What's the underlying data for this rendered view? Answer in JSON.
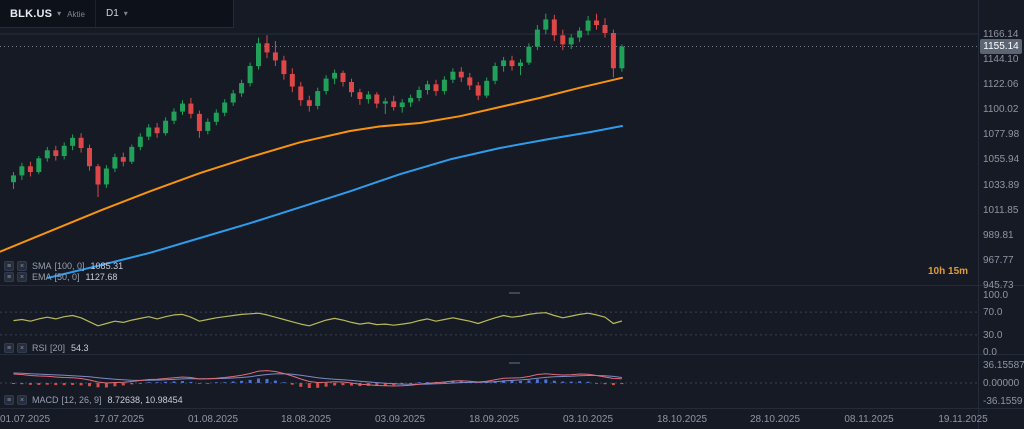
{
  "toolbar": {
    "symbol": "BLK.US",
    "instrument_type": "Aktie",
    "timeframe": "D1"
  },
  "icons": {
    "chevron_down": "▾",
    "menu": "≡",
    "close": "×"
  },
  "countdown": "10h 15m",
  "price_axis": {
    "current_price": "1155.14",
    "ticks": [
      "1166.14",
      "1144.10",
      "1122.06",
      "1100.02",
      "1077.98",
      "1055.94",
      "1033.89",
      "1011.85",
      "989.81",
      "967.77",
      "945.73"
    ]
  },
  "time_axis": {
    "ticks": [
      "01.07.2025",
      "17.07.2025",
      "01.08.2025",
      "18.08.2025",
      "03.09.2025",
      "18.09.2025",
      "03.10.2025",
      "18.10.2025",
      "28.10.2025",
      "08.11.2025",
      "19.11.2025"
    ]
  },
  "indicators": {
    "sma": {
      "name": "SMA",
      "params": "[100, 0]",
      "value": "1085.31"
    },
    "ema": {
      "name": "EMA",
      "params": "[50, 0]",
      "value": "1127.68"
    },
    "rsi": {
      "name": "RSI",
      "params": "[20]",
      "value": "54.3"
    },
    "macd": {
      "name": "MACD",
      "params": "[12, 26, 9]",
      "value": "8.72638, 10.98454"
    }
  },
  "colors": {
    "up": "#21a05a",
    "down": "#de4747",
    "sma": "#2f9ceb",
    "ema": "#f7930e",
    "rsi": "#b9b95a",
    "macd_line": "#e06c75",
    "signal_line": "#7d8ac9",
    "hist_pos": "#4a72d8",
    "hist_neg": "#d64c4c",
    "countdown": "#e09b3d",
    "current_price_line": "#8a919e",
    "high_line": "#272e3d",
    "level_line": "#3a4152"
  },
  "chart_data": {
    "type": "candlestick",
    "symbol": "BLK.US",
    "timeframe": "D1",
    "price_line": 1155.14,
    "high_line": 1166.14,
    "candles": [
      [
        1036,
        1045,
        1030,
        1042
      ],
      [
        1042,
        1053,
        1038,
        1050
      ],
      [
        1050,
        1054,
        1041,
        1045
      ],
      [
        1045,
        1059,
        1043,
        1057
      ],
      [
        1057,
        1067,
        1054,
        1064
      ],
      [
        1064,
        1068,
        1055,
        1059
      ],
      [
        1059,
        1071,
        1056,
        1068
      ],
      [
        1068,
        1078,
        1064,
        1075
      ],
      [
        1075,
        1079,
        1062,
        1066
      ],
      [
        1066,
        1069,
        1046,
        1050
      ],
      [
        1050,
        1052,
        1023,
        1034
      ],
      [
        1034,
        1051,
        1031,
        1048
      ],
      [
        1048,
        1061,
        1045,
        1058
      ],
      [
        1058,
        1062,
        1050,
        1054
      ],
      [
        1054,
        1069,
        1052,
        1067
      ],
      [
        1067,
        1079,
        1064,
        1076
      ],
      [
        1076,
        1087,
        1073,
        1084
      ],
      [
        1084,
        1088,
        1075,
        1079
      ],
      [
        1079,
        1093,
        1077,
        1090
      ],
      [
        1090,
        1101,
        1087,
        1098
      ],
      [
        1098,
        1108,
        1095,
        1105
      ],
      [
        1105,
        1110,
        1092,
        1096
      ],
      [
        1096,
        1099,
        1075,
        1081
      ],
      [
        1081,
        1092,
        1078,
        1089
      ],
      [
        1089,
        1100,
        1086,
        1097
      ],
      [
        1097,
        1109,
        1094,
        1106
      ],
      [
        1106,
        1117,
        1103,
        1114
      ],
      [
        1114,
        1126,
        1111,
        1123
      ],
      [
        1123,
        1141,
        1120,
        1138
      ],
      [
        1138,
        1163,
        1135,
        1158
      ],
      [
        1158,
        1165,
        1145,
        1150
      ],
      [
        1150,
        1160,
        1138,
        1143
      ],
      [
        1143,
        1147,
        1126,
        1131
      ],
      [
        1131,
        1136,
        1115,
        1120
      ],
      [
        1120,
        1124,
        1103,
        1108
      ],
      [
        1108,
        1112,
        1098,
        1103
      ],
      [
        1103,
        1119,
        1100,
        1116
      ],
      [
        1116,
        1130,
        1113,
        1127
      ],
      [
        1127,
        1135,
        1122,
        1132
      ],
      [
        1132,
        1134,
        1120,
        1124
      ],
      [
        1124,
        1127,
        1111,
        1115
      ],
      [
        1115,
        1118,
        1104,
        1109
      ],
      [
        1109,
        1116,
        1105,
        1113
      ],
      [
        1113,
        1115,
        1101,
        1105
      ],
      [
        1105,
        1110,
        1096,
        1107
      ],
      [
        1107,
        1112,
        1099,
        1102
      ],
      [
        1102,
        1109,
        1097,
        1106
      ],
      [
        1106,
        1113,
        1102,
        1110
      ],
      [
        1110,
        1120,
        1107,
        1117
      ],
      [
        1117,
        1125,
        1113,
        1122
      ],
      [
        1122,
        1126,
        1112,
        1116
      ],
      [
        1116,
        1129,
        1113,
        1126
      ],
      [
        1126,
        1136,
        1123,
        1133
      ],
      [
        1133,
        1137,
        1124,
        1128
      ],
      [
        1128,
        1132,
        1117,
        1121
      ],
      [
        1121,
        1124,
        1108,
        1112
      ],
      [
        1112,
        1128,
        1110,
        1125
      ],
      [
        1125,
        1141,
        1122,
        1138
      ],
      [
        1138,
        1146,
        1133,
        1143
      ],
      [
        1143,
        1147,
        1134,
        1138
      ],
      [
        1138,
        1144,
        1130,
        1141
      ],
      [
        1141,
        1158,
        1139,
        1155
      ],
      [
        1155,
        1174,
        1152,
        1170
      ],
      [
        1170,
        1184,
        1166,
        1179
      ],
      [
        1179,
        1183,
        1160,
        1165
      ],
      [
        1165,
        1170,
        1152,
        1157
      ],
      [
        1157,
        1166,
        1153,
        1163
      ],
      [
        1163,
        1172,
        1159,
        1169
      ],
      [
        1169,
        1182,
        1165,
        1178
      ],
      [
        1178,
        1184,
        1170,
        1174
      ],
      [
        1174,
        1180,
        1163,
        1167
      ],
      [
        1167,
        1170,
        1128,
        1136
      ],
      [
        1136,
        1157,
        1133,
        1155.14
      ]
    ],
    "overlays": [
      {
        "name": "SMA(100)",
        "color_key": "sma",
        "points": [
          [
            48,
            952
          ],
          [
            100,
            963
          ],
          [
            150,
            974
          ],
          [
            200,
            987
          ],
          [
            250,
            1000
          ],
          [
            300,
            1014
          ],
          [
            350,
            1028
          ],
          [
            400,
            1043
          ],
          [
            450,
            1056
          ],
          [
            500,
            1066
          ],
          [
            550,
            1074
          ],
          [
            590,
            1080
          ],
          [
            622,
            1085.31
          ]
        ]
      },
      {
        "name": "EMA(50)",
        "color_key": "ema",
        "points": [
          [
            0,
            975
          ],
          [
            50,
            993
          ],
          [
            100,
            1011
          ],
          [
            150,
            1028
          ],
          [
            200,
            1044
          ],
          [
            250,
            1058
          ],
          [
            300,
            1071
          ],
          [
            350,
            1081
          ],
          [
            380,
            1085
          ],
          [
            420,
            1088
          ],
          [
            460,
            1094
          ],
          [
            500,
            1102
          ],
          [
            540,
            1110
          ],
          [
            580,
            1119
          ],
          [
            622,
            1127.68
          ]
        ]
      }
    ],
    "rsi_panel": {
      "levels": [
        70,
        30
      ],
      "ticks": [
        {
          "label": "100.0",
          "value": 100
        },
        {
          "label": "70.0",
          "value": 70
        },
        {
          "label": "30.0",
          "value": 30
        },
        {
          "label": "0.0",
          "value": 0
        }
      ],
      "values": [
        55,
        57,
        54,
        58,
        61,
        58,
        62,
        64,
        60,
        53,
        46,
        50,
        54,
        52,
        56,
        59,
        62,
        58,
        62,
        65,
        66,
        61,
        54,
        57,
        60,
        62,
        64,
        66,
        67,
        68,
        65,
        61,
        57,
        53,
        49,
        46,
        51,
        56,
        59,
        56,
        52,
        49,
        51,
        48,
        49,
        47,
        49,
        51,
        55,
        58,
        54,
        57,
        60,
        57,
        54,
        50,
        55,
        60,
        64,
        61,
        63,
        66,
        68,
        69,
        64,
        60,
        63,
        66,
        68,
        65,
        61,
        50,
        54.3
      ]
    },
    "macd_panel": {
      "ticks": [
        {
          "label": "36.15587",
          "value": 36.15587
        },
        {
          "label": "0.00000",
          "value": 0
        },
        {
          "label": "-36.1559",
          "value": -36.1559
        }
      ],
      "macd": [
        18,
        17,
        15,
        14,
        13.5,
        12,
        11,
        10.5,
        9,
        6,
        2,
        0,
        1,
        1.5,
        3,
        5,
        7,
        7.5,
        9,
        10.5,
        12,
        11,
        8,
        8.5,
        9.5,
        11,
        13,
        15.5,
        19,
        24,
        25,
        23,
        19,
        14,
        8,
        3,
        1,
        1.5,
        2.5,
        2,
        0,
        -2.5,
        -3.5,
        -5,
        -5.5,
        -6,
        -5.5,
        -4.5,
        -2.5,
        -0.5,
        0.5,
        2,
        4,
        4.5,
        3.5,
        2,
        3.5,
        6.5,
        9.5,
        10,
        10.5,
        13,
        17,
        18.5,
        17,
        16,
        16.5,
        18,
        17.5,
        15,
        12,
        9,
        8.72638
      ],
      "signal": [
        20,
        19.4,
        18.6,
        17.8,
        17,
        16.2,
        15.4,
        14.6,
        13.6,
        12.4,
        10.7,
        9,
        7.6,
        6.4,
        5.6,
        5.3,
        5.5,
        5.9,
        6.5,
        7.3,
        8.2,
        8.8,
        8.7,
        8.6,
        8.8,
        9.3,
        10,
        11.1,
        12.7,
        15,
        17,
        18.2,
        18.4,
        17.5,
        15.6,
        13.1,
        10.7,
        8.9,
        7.6,
        6.5,
        5.2,
        3.7,
        2.3,
        0.8,
        -0.4,
        -1.5,
        -2.3,
        -2.7,
        -2.7,
        -2.3,
        -1.7,
        -1,
        -0.1,
        0.8,
        1.3,
        1.4,
        1.8,
        2.7,
        4.1,
        5.2,
        6.3,
        7.6,
        9.5,
        11.2,
        12.4,
        13.1,
        13.7,
        14.6,
        15.1,
        15.1,
        14.5,
        13.2,
        10.98454
      ]
    }
  }
}
